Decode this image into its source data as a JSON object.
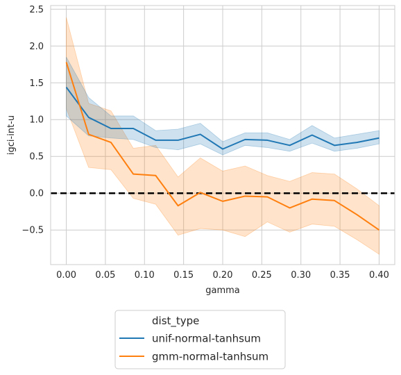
{
  "chart_data": {
    "type": "line",
    "title": "",
    "xlabel": "gamma",
    "ylabel": "igci-int-u",
    "xlim": [
      -0.02,
      0.42
    ],
    "ylim": [
      -0.97,
      2.55
    ],
    "x_ticks": [
      0.0,
      0.05,
      0.1,
      0.15,
      0.2,
      0.25,
      0.3,
      0.35,
      0.4
    ],
    "x_tick_labels": [
      "0.00",
      "0.05",
      "0.10",
      "0.15",
      "0.20",
      "0.25",
      "0.30",
      "0.35",
      "0.40"
    ],
    "y_ticks": [
      -0.5,
      0.0,
      0.5,
      1.0,
      1.5,
      2.0,
      2.5
    ],
    "y_tick_labels": [
      "−0.5",
      "0.0",
      "0.5",
      "1.0",
      "1.5",
      "2.0",
      "2.5"
    ],
    "grid": true,
    "reference_line": {
      "y": 0.0,
      "style": "dashed",
      "color": "#000000"
    },
    "x": [
      0.0,
      0.0286,
      0.0571,
      0.0857,
      0.1143,
      0.1429,
      0.1714,
      0.2,
      0.2286,
      0.2571,
      0.2857,
      0.3143,
      0.3429,
      0.3714,
      0.4
    ],
    "series": [
      {
        "name": "unif-normal-tanhsum",
        "color": "#1f77b4",
        "values": [
          1.44,
          1.03,
          0.88,
          0.88,
          0.72,
          0.72,
          0.8,
          0.6,
          0.73,
          0.72,
          0.65,
          0.79,
          0.65,
          0.69,
          0.75
        ],
        "ci_upper": [
          1.85,
          1.3,
          1.05,
          1.05,
          0.85,
          0.87,
          0.95,
          0.7,
          0.82,
          0.82,
          0.73,
          0.92,
          0.75,
          0.8,
          0.85
        ],
        "ci_lower": [
          1.05,
          0.78,
          0.75,
          0.73,
          0.62,
          0.59,
          0.67,
          0.52,
          0.65,
          0.62,
          0.57,
          0.68,
          0.57,
          0.61,
          0.67
        ]
      },
      {
        "name": "gmm-normal-tanhsum",
        "color": "#ff7f0e",
        "values": [
          1.78,
          0.8,
          0.69,
          0.26,
          0.24,
          -0.17,
          0.01,
          -0.11,
          -0.04,
          -0.05,
          -0.2,
          -0.08,
          -0.1,
          -0.29,
          -0.5
        ],
        "ci_upper": [
          2.39,
          1.22,
          1.12,
          0.61,
          0.65,
          0.22,
          0.48,
          0.3,
          0.37,
          0.24,
          0.16,
          0.28,
          0.26,
          0.06,
          -0.17
        ],
        "ci_lower": [
          1.15,
          0.35,
          0.32,
          -0.07,
          -0.15,
          -0.57,
          -0.48,
          -0.5,
          -0.59,
          -0.39,
          -0.53,
          -0.42,
          -0.45,
          -0.63,
          -0.83
        ]
      }
    ],
    "legend": {
      "placement": "bottom",
      "title": "dist_type",
      "entries": [
        "unif-normal-tanhsum",
        "gmm-normal-tanhsum"
      ]
    }
  }
}
